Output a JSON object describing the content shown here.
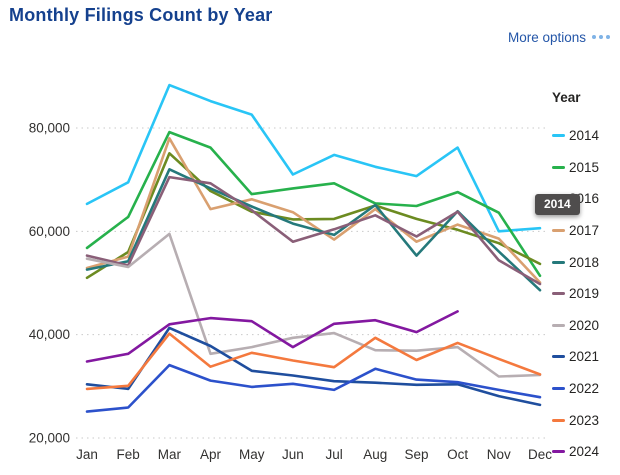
{
  "header": {
    "title": "Monthly Filings Count by Year",
    "more_options_label": "More options"
  },
  "tooltip": {
    "text": "2014"
  },
  "colors": {
    "title_blue": "#15418E",
    "link_blue": "#2456A8",
    "link_dots": "#7FB3E6",
    "axis_text": "#323130",
    "gridline": "#C9C9C9",
    "tooltip_bg": "#4F4D4D"
  },
  "chart_data": {
    "type": "line",
    "title": "Monthly Filings Count by Year",
    "xlabel": "",
    "ylabel": "",
    "x": [
      "Jan",
      "Feb",
      "Mar",
      "Apr",
      "May",
      "Jun",
      "Jul",
      "Aug",
      "Sep",
      "Oct",
      "Nov",
      "Dec"
    ],
    "ylim": [
      20000,
      90000
    ],
    "yticks": [
      20000,
      40000,
      60000,
      80000
    ],
    "ytick_labels": [
      "20,000",
      "40,000",
      "60,000",
      "80,000"
    ],
    "grid": "horizontal-dotted",
    "legend": {
      "title": "Year",
      "position": "right"
    },
    "series": [
      {
        "name": "2014",
        "color": "#29C5F6",
        "values": [
          65300,
          69500,
          88300,
          85200,
          82600,
          71000,
          74800,
          72500,
          70700,
          76200,
          60000,
          60600
        ]
      },
      {
        "name": "2015",
        "color": "#27B14C",
        "values": [
          56800,
          62800,
          79200,
          76200,
          67200,
          68300,
          69300,
          65400,
          64900,
          67600,
          63600,
          51400
        ]
      },
      {
        "name": "2016",
        "color": "#6C8B21",
        "values": [
          51000,
          56000,
          75100,
          67800,
          63800,
          62300,
          62400,
          65000,
          62400,
          60300,
          57700,
          53700
        ]
      },
      {
        "name": "2017",
        "color": "#D9A070",
        "values": [
          52900,
          55100,
          78000,
          64300,
          66200,
          63700,
          58400,
          64300,
          58000,
          61300,
          58600,
          50100
        ]
      },
      {
        "name": "2018",
        "color": "#25797B",
        "values": [
          52600,
          54200,
          72000,
          68300,
          64800,
          61500,
          59300,
          65100,
          55300,
          63900,
          56100,
          48600
        ]
      },
      {
        "name": "2019",
        "color": "#8A5F78",
        "values": [
          55300,
          53400,
          70500,
          69300,
          64100,
          58000,
          60400,
          63100,
          59000,
          63800,
          54400,
          49800
        ]
      },
      {
        "name": "2020",
        "color": "#B7AEB2",
        "values": [
          54700,
          53100,
          59500,
          36300,
          37600,
          39400,
          40300,
          37000,
          36900,
          37600,
          31900,
          32200
        ]
      },
      {
        "name": "2021",
        "color": "#1F4E9E",
        "values": [
          30400,
          29500,
          41300,
          37800,
          33000,
          32100,
          31000,
          30700,
          30300,
          30400,
          28100,
          26400
        ]
      },
      {
        "name": "2022",
        "color": "#2C51CB",
        "values": [
          25100,
          25900,
          34100,
          31100,
          29900,
          30500,
          29300,
          33400,
          31300,
          30800,
          29300,
          27900
        ]
      },
      {
        "name": "2023",
        "color": "#F4793E",
        "values": [
          29500,
          30100,
          40200,
          33800,
          36500,
          35000,
          33700,
          39400,
          35100,
          38400,
          35300,
          32300
        ]
      },
      {
        "name": "2024",
        "color": "#8318A0",
        "values": [
          34800,
          36300,
          42000,
          43200,
          42600,
          37600,
          42100,
          42800,
          40500,
          44500,
          null,
          null
        ]
      }
    ]
  }
}
